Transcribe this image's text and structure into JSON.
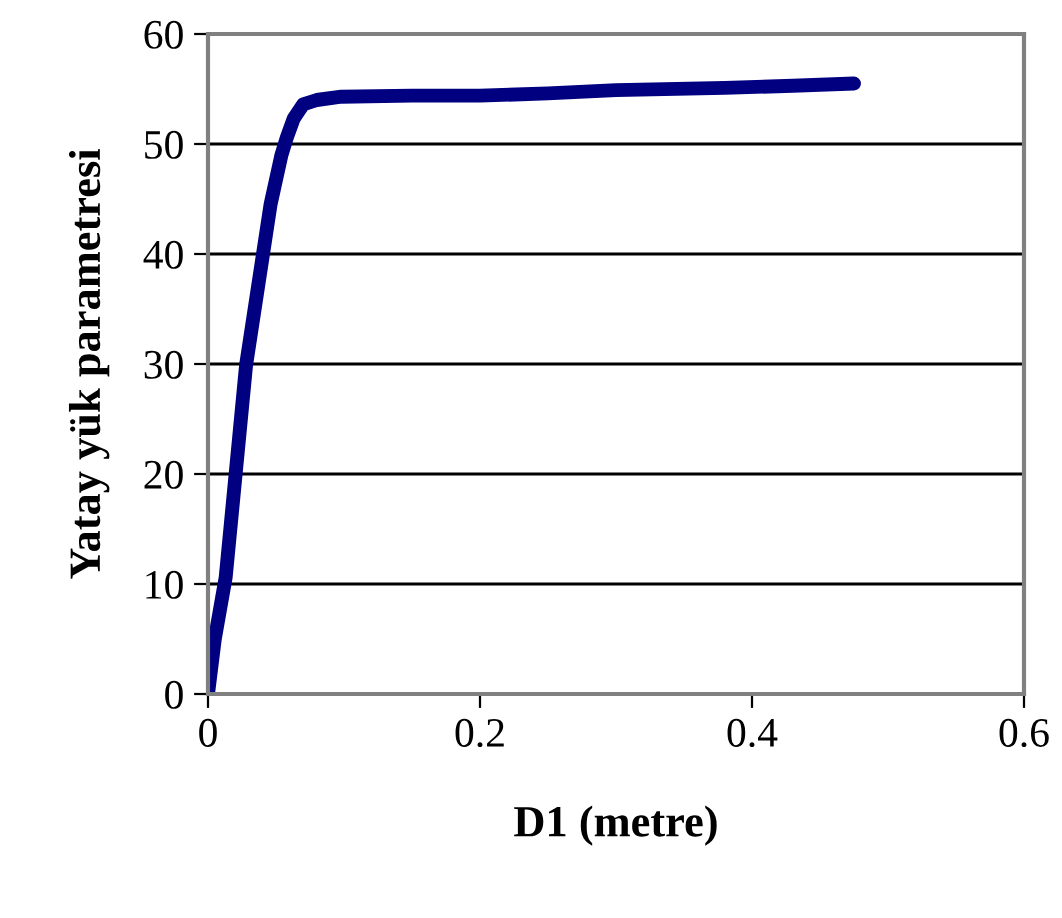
{
  "chart_data": {
    "type": "line",
    "xlabel": "D1 (metre)",
    "ylabel": "Yatay yük parametresi",
    "series": [
      {
        "color": "#000080",
        "x": [
          0,
          0.005,
          0.013,
          0.028,
          0.046,
          0.054,
          0.058,
          0.063,
          0.07,
          0.08,
          0.098,
          0.15,
          0.2,
          0.25,
          0.3,
          0.38,
          0.43,
          0.475
        ],
        "values": [
          0,
          5,
          10.6,
          29.9,
          44.5,
          49,
          50.6,
          52.3,
          53.6,
          54.0,
          54.3,
          54.4,
          54.4,
          54.6,
          54.9,
          55.1,
          55.3,
          55.5
        ]
      }
    ],
    "xlim": [
      0,
      0.6
    ],
    "xticks": [
      0,
      0.2,
      0.4,
      0.6
    ],
    "ylim": [
      0,
      60
    ],
    "yticks": [
      0,
      10,
      20,
      30,
      40,
      50,
      60
    ],
    "grid": "y",
    "legend": false,
    "marker": "none",
    "line_style": "solid"
  }
}
